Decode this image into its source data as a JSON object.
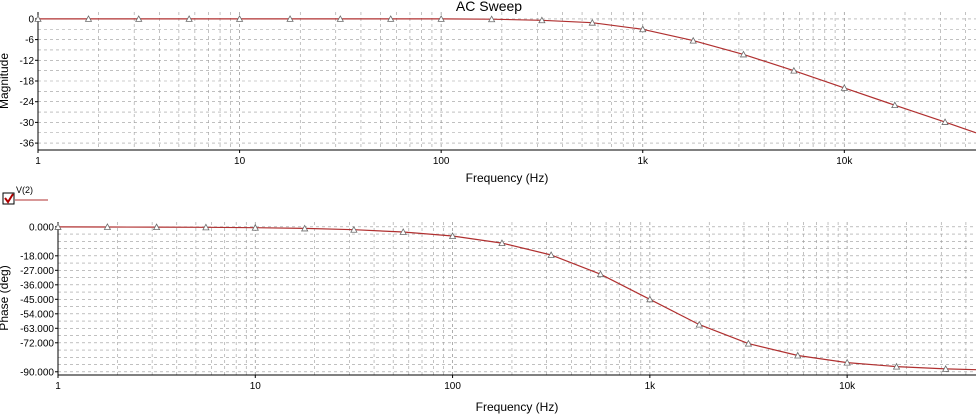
{
  "window": {
    "title": "AC Sweep"
  },
  "legend": {
    "label": "V(2)",
    "checked": true
  },
  "colors": {
    "trace": "#b03030",
    "grid": "#9a9a9a",
    "axis": "#000000",
    "marker": "#6b6b6b"
  },
  "chart_data": [
    {
      "type": "line",
      "title": "AC Sweep",
      "xlabel": "Frequency (Hz)",
      "ylabel": "Magnitude",
      "xscale": "log",
      "xlim": [
        1,
        45000
      ],
      "ylim": [
        -38,
        2
      ],
      "xticks": [
        {
          "value": 1,
          "label": "1"
        },
        {
          "value": 10,
          "label": "10"
        },
        {
          "value": 100,
          "label": "100"
        },
        {
          "value": 1000,
          "label": "1k"
        },
        {
          "value": 10000,
          "label": "10k"
        }
      ],
      "yticks": [
        {
          "value": 0,
          "label": "0"
        },
        {
          "value": -6,
          "label": "-6"
        },
        {
          "value": -12,
          "label": "-12"
        },
        {
          "value": -18,
          "label": "-18"
        },
        {
          "value": -24,
          "label": "-24"
        },
        {
          "value": -30,
          "label": "-30"
        },
        {
          "value": -36,
          "label": "-36"
        }
      ],
      "grid": true,
      "series": [
        {
          "name": "V(2)",
          "x": [
            1,
            1.78,
            3.16,
            5.62,
            10,
            17.8,
            31.6,
            56.2,
            100,
            178,
            316,
            562,
            1000,
            1780,
            3160,
            5620,
            10000,
            17800,
            31600,
            45000
          ],
          "y": [
            0,
            0,
            0,
            0,
            0,
            0,
            0,
            0,
            0,
            -0.1,
            -0.4,
            -1.1,
            -3.0,
            -6.3,
            -10.3,
            -15.0,
            -20.0,
            -25.0,
            -29.9,
            -33.0
          ],
          "markers_x": [
            1,
            1.78,
            3.16,
            5.62,
            10,
            17.8,
            31.6,
            56.2,
            100,
            178,
            316,
            562,
            1000,
            1780,
            3160,
            5620,
            10000,
            17800,
            31600
          ],
          "markers_y": [
            0,
            0,
            0,
            0,
            0,
            0,
            0,
            0,
            0,
            -0.1,
            -0.4,
            -1.1,
            -3.0,
            -6.3,
            -10.3,
            -15.0,
            -20.0,
            -25.0,
            -29.9
          ]
        }
      ]
    },
    {
      "type": "line",
      "title": "",
      "xlabel": "Frequency (Hz)",
      "ylabel": "Phase (deg)",
      "xscale": "log",
      "xlim": [
        1,
        45000
      ],
      "ylim": [
        -92,
        3
      ],
      "xticks": [
        {
          "value": 1,
          "label": "1"
        },
        {
          "value": 10,
          "label": "10"
        },
        {
          "value": 100,
          "label": "100"
        },
        {
          "value": 1000,
          "label": "1k"
        },
        {
          "value": 10000,
          "label": "10k"
        }
      ],
      "yticks": [
        {
          "value": 0,
          "label": "0.000"
        },
        {
          "value": -18,
          "label": "-18.000"
        },
        {
          "value": -27,
          "label": "-27.000"
        },
        {
          "value": -36,
          "label": "-36.000"
        },
        {
          "value": -45,
          "label": "-45.000"
        },
        {
          "value": -54,
          "label": "-54.000"
        },
        {
          "value": -63,
          "label": "-63.000"
        },
        {
          "value": -72,
          "label": "-72.000"
        },
        {
          "value": -90,
          "label": "-90.000"
        }
      ],
      "grid": true,
      "series": [
        {
          "name": "V(2)",
          "x": [
            1,
            1.78,
            3.16,
            5.62,
            10,
            17.8,
            31.6,
            56.2,
            100,
            178,
            316,
            562,
            1000,
            1780,
            3160,
            5620,
            10000,
            17800,
            31600,
            45000
          ],
          "y": [
            -0.06,
            -0.1,
            -0.18,
            -0.32,
            -0.57,
            -1.0,
            -1.8,
            -3.2,
            -5.7,
            -10.1,
            -17.5,
            -29.4,
            -45.0,
            -60.7,
            -72.5,
            -79.9,
            -84.3,
            -86.8,
            -88.2,
            -88.7
          ],
          "markers_x": [
            1,
            1.78,
            3.16,
            5.62,
            10,
            17.8,
            31.6,
            56.2,
            100,
            178,
            316,
            562,
            1000,
            1780,
            3160,
            5620,
            10000,
            17800,
            31600
          ],
          "markers_y": [
            -0.06,
            -0.1,
            -0.18,
            -0.32,
            -0.57,
            -1.0,
            -1.8,
            -3.2,
            -5.7,
            -10.1,
            -17.5,
            -29.4,
            -45.0,
            -60.7,
            -72.5,
            -79.9,
            -84.3,
            -86.8,
            -88.2
          ]
        }
      ]
    }
  ]
}
